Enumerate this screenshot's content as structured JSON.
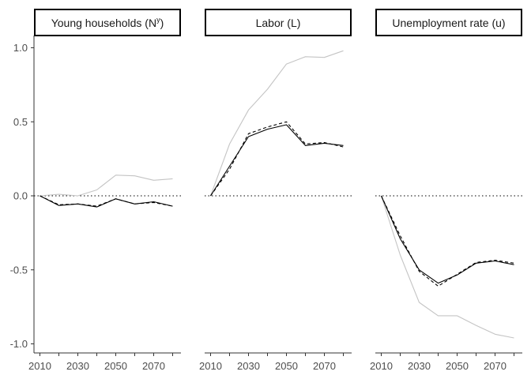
{
  "chart_data": {
    "type": "line",
    "layout": "three facet panels sharing one y axis",
    "ylim": [
      -1.05,
      1.05
    ],
    "y_ticks": [
      "1.0",
      "0.5",
      "0.0",
      "-0.5",
      "-1.0"
    ],
    "y_tick_values": [
      1.0,
      0.5,
      0.0,
      -0.5,
      -1.0
    ],
    "x_ticks": [
      "2010",
      "2030",
      "2050",
      "2070"
    ],
    "x_tick_values": [
      2010,
      2030,
      2050,
      2070
    ],
    "xlim": [
      2006,
      2084
    ],
    "x": [
      2010,
      2020,
      2030,
      2040,
      2050,
      2060,
      2070,
      2080
    ],
    "reference_line": {
      "y": 0,
      "style": "dotted"
    },
    "grid": false,
    "legend": "none",
    "panels": [
      {
        "title": "Young households (N",
        "title_sup": "y",
        "title_end": ")",
        "series": [
          {
            "style": "solid",
            "color": "#000000",
            "values": [
              0.0,
              -0.065,
              -0.055,
              -0.075,
              -0.02,
              -0.055,
              -0.04,
              -0.07
            ]
          },
          {
            "style": "dashed",
            "color": "#000000",
            "values": [
              0.0,
              -0.06,
              -0.055,
              -0.07,
              -0.02,
              -0.055,
              -0.045,
              -0.07
            ]
          },
          {
            "style": "solid",
            "color": "#c4c4c4",
            "values": [
              0.0,
              0.01,
              0.0,
              0.04,
              0.14,
              0.135,
              0.105,
              0.115
            ]
          }
        ]
      },
      {
        "title": "Labor (L)",
        "series": [
          {
            "style": "solid",
            "color": "#000000",
            "values": [
              0.0,
              0.2,
              0.4,
              0.45,
              0.48,
              0.34,
              0.355,
              0.34
            ]
          },
          {
            "style": "dashed",
            "color": "#000000",
            "values": [
              0.0,
              0.18,
              0.42,
              0.465,
              0.5,
              0.35,
              0.36,
              0.33
            ]
          },
          {
            "style": "solid",
            "color": "#c4c4c4",
            "values": [
              0.0,
              0.35,
              0.58,
              0.72,
              0.89,
              0.94,
              0.935,
              0.98
            ]
          }
        ]
      },
      {
        "title": "Unemployment rate (u)",
        "series": [
          {
            "style": "solid",
            "color": "#000000",
            "values": [
              0.0,
              -0.29,
              -0.5,
              -0.59,
              -0.535,
              -0.455,
              -0.44,
              -0.465
            ]
          },
          {
            "style": "dashed",
            "color": "#000000",
            "values": [
              0.0,
              -0.27,
              -0.51,
              -0.61,
              -0.53,
              -0.45,
              -0.435,
              -0.455
            ]
          },
          {
            "style": "solid",
            "color": "#c4c4c4",
            "values": [
              0.0,
              -0.4,
              -0.72,
              -0.81,
              -0.81,
              -0.875,
              -0.935,
              -0.96
            ]
          }
        ]
      }
    ]
  }
}
